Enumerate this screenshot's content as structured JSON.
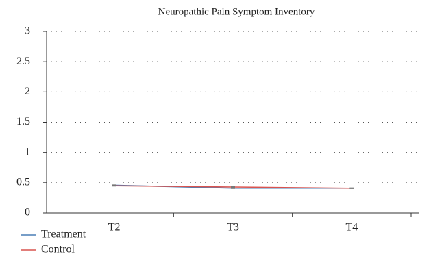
{
  "chart_data": {
    "type": "line",
    "title": "Neuropathic Pain Symptom Inventory",
    "categories": [
      "T2",
      "T3",
      "T4"
    ],
    "series": [
      {
        "name": "Treatment",
        "color": "#4a7fb5",
        "values": [
          0.46,
          0.41,
          0.41
        ]
      },
      {
        "name": "Control",
        "color": "#d9534f",
        "values": [
          0.45,
          0.43,
          0.41
        ]
      }
    ],
    "ylim": [
      0,
      3
    ],
    "yticks": [
      0,
      0.5,
      1,
      1.5,
      2,
      2.5,
      3
    ],
    "grid": true,
    "legend": "bottom-left"
  }
}
